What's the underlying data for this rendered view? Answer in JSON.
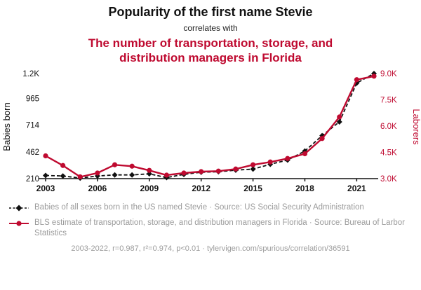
{
  "colors": {
    "accent": "#bf0a30",
    "ink": "#111111",
    "muted_text": "#9b9b9b"
  },
  "header": {
    "title": "Popularity of the first name Stevie",
    "connector": "correlates with",
    "subtitle": "The number of transportation, storage, and distribution managers in Florida"
  },
  "chart_data": {
    "type": "line",
    "x": [
      2003,
      2004,
      2005,
      2006,
      2007,
      2008,
      2009,
      2010,
      2011,
      2012,
      2013,
      2014,
      2015,
      2016,
      2017,
      2018,
      2019,
      2020,
      2021,
      2022
    ],
    "x_ticks": [
      2003,
      2006,
      2009,
      2012,
      2015,
      2018,
      2021
    ],
    "left_axis": {
      "label": "Babies born",
      "min": 210,
      "max": 1200,
      "ticks": [
        210,
        462,
        714,
        965,
        1200
      ],
      "tick_labels": [
        "210",
        "462",
        "714",
        "965",
        "1.2K"
      ]
    },
    "right_axis": {
      "label": "Laborers",
      "min": 3000,
      "max": 9000,
      "ticks": [
        3000,
        4500,
        6000,
        7500,
        9000
      ],
      "tick_labels": [
        "3.0K",
        "4.5K",
        "6.0K",
        "7.5K",
        "9.0K"
      ]
    },
    "series": [
      {
        "name": "Babies of all sexes born in the US named Stevie",
        "axis": "left",
        "color": "#111111",
        "marker": "diamond",
        "dash": true,
        "values": [
          240,
          235,
          215,
          235,
          245,
          245,
          255,
          220,
          250,
          270,
          275,
          290,
          300,
          345,
          385,
          470,
          615,
          745,
          1110,
          1200
        ]
      },
      {
        "name": "BLS estimate of transportation, storage, and distribution managers in Florida",
        "axis": "right",
        "color": "#bf0a30",
        "marker": "circle",
        "dash": false,
        "values": [
          4300,
          3750,
          3100,
          3320,
          3790,
          3710,
          3470,
          3200,
          3320,
          3400,
          3430,
          3550,
          3790,
          3950,
          4150,
          4420,
          5290,
          6520,
          8650,
          8850
        ]
      }
    ],
    "grid": false,
    "legend_position": "below"
  },
  "legend": [
    {
      "label": "Babies of all sexes born in the US named Stevie · Source: US Social Security Administration"
    },
    {
      "label": "BLS estimate of transportation, storage, and distribution managers in Florida · Source: Bureau of Larbor Statistics"
    }
  ],
  "footer": {
    "text": "2003-2022, r=0.987, r²=0.974, p<0.01 · tylervigen.com/spurious/correlation/36591"
  }
}
